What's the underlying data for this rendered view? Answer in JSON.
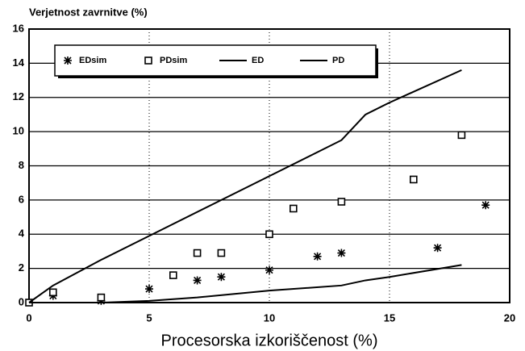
{
  "chart_data": {
    "type": "scatter",
    "title": "Verjetnost zavrnitve (%)",
    "x_label": "Procesorska izkoriščenost (%)",
    "xlim": [
      0,
      20
    ],
    "xticks": [
      0,
      5,
      10,
      15,
      20
    ],
    "ylim": [
      0,
      16
    ],
    "yticks": [
      0,
      2,
      4,
      6,
      8,
      10,
      12,
      14,
      16
    ],
    "grid": true,
    "legend": "upper left",
    "series": [
      {
        "name": "EDsim",
        "mode": "markers",
        "marker": "asterisk",
        "color": "#000000",
        "x": [
          1,
          3,
          5,
          7,
          8,
          10,
          12,
          13,
          17,
          19
        ],
        "values": [
          0.4,
          0.1,
          0.8,
          1.3,
          1.5,
          1.9,
          2.7,
          2.9,
          3.2,
          5.7
        ]
      },
      {
        "name": "PDsim",
        "mode": "markers",
        "marker": "square",
        "color": "#000000",
        "x": [
          0,
          1,
          3,
          6,
          7,
          8,
          10,
          11,
          13,
          16,
          18
        ],
        "values": [
          0,
          0.6,
          0.3,
          1.6,
          2.9,
          2.9,
          4.0,
          5.5,
          5.9,
          7.2,
          9.8
        ]
      },
      {
        "name": "ED",
        "mode": "lines",
        "color": "#000000",
        "x": [
          0,
          1,
          3,
          5,
          10,
          13,
          14,
          15,
          18
        ],
        "values": [
          0,
          1.0,
          2.5,
          3.9,
          7.4,
          9.5,
          11.0,
          11.7,
          13.6
        ]
      },
      {
        "name": "PD",
        "mode": "lines",
        "color": "#000000",
        "x": [
          0,
          3,
          5,
          7,
          10,
          13,
          14,
          15,
          18
        ],
        "values": [
          0,
          0,
          0.1,
          0.3,
          0.7,
          1.0,
          1.3,
          1.5,
          2.2
        ]
      }
    ]
  }
}
